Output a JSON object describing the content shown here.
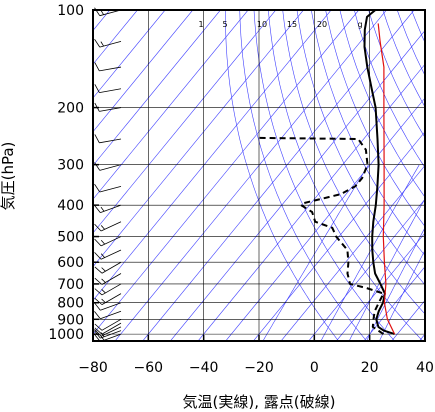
{
  "chart_data": {
    "type": "line",
    "title": "",
    "xlabel": "気温(実線), 露点(破線)",
    "ylabel": "気圧(hPa)",
    "xlim": [
      -80,
      40
    ],
    "ylim_hPa": [
      1050,
      100
    ],
    "y_scale": "log",
    "x_ticks": [
      -80,
      -60,
      -40,
      -20,
      0,
      20,
      40
    ],
    "x_tick_labels": [
      "−80",
      "−60",
      "−40",
      "−20",
      "0",
      "20",
      "40"
    ],
    "y_ticks": [
      100,
      200,
      300,
      400,
      500,
      600,
      700,
      800,
      900,
      1000
    ],
    "y_tick_labels": [
      "100",
      "200",
      "300",
      "400",
      "500",
      "600",
      "700",
      "800",
      "900",
      "1000"
    ],
    "grid": true,
    "mixing_ratio_labels": [
      {
        "text": "1",
        "w": 1
      },
      {
        "text": "5",
        "w": 5
      },
      {
        "text": "10",
        "w": 10
      },
      {
        "text": "15",
        "w": 15
      },
      {
        "text": "20",
        "w": 20
      },
      {
        "text": "g",
        "w": 27
      }
    ],
    "isotherms_C": [
      -200,
      -190,
      -180,
      -170,
      -160,
      -150,
      -140,
      -130,
      -120,
      -110,
      -100,
      -90,
      -80,
      -70,
      -60,
      -50,
      -40,
      -30,
      -20,
      -10,
      0,
      10,
      20,
      30,
      40
    ],
    "dry_adiabats_K": [
      280,
      290,
      300,
      310,
      320,
      330,
      340,
      350,
      360,
      370,
      380,
      390,
      400,
      410,
      420,
      430,
      440,
      450,
      460,
      470,
      480
    ],
    "mixing_ratio_lines_gkg": [
      1,
      5,
      10,
      15,
      20
    ],
    "series": [
      {
        "role": "temperature",
        "style": "solid",
        "color": "#000000",
        "points": [
          {
            "p": 1000,
            "t": 29
          },
          {
            "p": 975,
            "t": 24
          },
          {
            "p": 950,
            "t": 21
          },
          {
            "p": 925,
            "t": 19.5
          },
          {
            "p": 900,
            "t": 18
          },
          {
            "p": 850,
            "t": 16.5
          },
          {
            "p": 800,
            "t": 15.5
          },
          {
            "p": 750,
            "t": 13.5
          },
          {
            "p": 700,
            "t": 9
          },
          {
            "p": 650,
            "t": 4
          },
          {
            "p": 600,
            "t": 0
          },
          {
            "p": 550,
            "t": -4
          },
          {
            "p": 500,
            "t": -8
          },
          {
            "p": 450,
            "t": -12
          },
          {
            "p": 400,
            "t": -16
          },
          {
            "p": 350,
            "t": -21
          },
          {
            "p": 300,
            "t": -27
          },
          {
            "p": 250,
            "t": -35
          },
          {
            "p": 200,
            "t": -45
          },
          {
            "p": 175,
            "t": -52
          },
          {
            "p": 150,
            "t": -60
          },
          {
            "p": 130,
            "t": -67
          },
          {
            "p": 115,
            "t": -72
          },
          {
            "p": 105,
            "t": -75
          },
          {
            "p": 100,
            "t": -74
          }
        ]
      },
      {
        "role": "dewpoint",
        "style": "dashed",
        "color": "#000000",
        "points": [
          {
            "p": 1000,
            "t": 25
          },
          {
            "p": 950,
            "t": 19
          },
          {
            "p": 900,
            "t": 17
          },
          {
            "p": 850,
            "t": 15
          },
          {
            "p": 800,
            "t": 14
          },
          {
            "p": 750,
            "t": 13
          },
          {
            "p": 720,
            "t": 5
          },
          {
            "p": 700,
            "t": -2
          },
          {
            "p": 650,
            "t": -6
          },
          {
            "p": 600,
            "t": -9
          },
          {
            "p": 550,
            "t": -13
          },
          {
            "p": 500,
            "t": -21
          },
          {
            "p": 470,
            "t": -25
          },
          {
            "p": 450,
            "t": -33
          },
          {
            "p": 420,
            "t": -37
          },
          {
            "p": 400,
            "t": -43
          },
          {
            "p": 395,
            "t": -43
          },
          {
            "p": 370,
            "t": -32
          },
          {
            "p": 350,
            "t": -29
          },
          {
            "p": 330,
            "t": -29
          },
          {
            "p": 300,
            "t": -31
          },
          {
            "p": 270,
            "t": -36
          },
          {
            "p": 250,
            "t": -42
          },
          {
            "p": 248,
            "t": -78
          }
        ]
      },
      {
        "role": "parcel",
        "style": "solid",
        "color": "#e01010",
        "points": [
          {
            "p": 1000,
            "t": 29
          },
          {
            "p": 900,
            "t": 22
          },
          {
            "p": 800,
            "t": 16
          },
          {
            "p": 700,
            "t": 11
          },
          {
            "p": 600,
            "t": 4
          },
          {
            "p": 500,
            "t": -4
          },
          {
            "p": 400,
            "t": -13
          },
          {
            "p": 300,
            "t": -25
          },
          {
            "p": 200,
            "t": -42
          },
          {
            "p": 150,
            "t": -54
          },
          {
            "p": 125,
            "t": -63
          },
          {
            "p": 110,
            "t": -69
          }
        ]
      }
    ],
    "wind_barbs": [
      {
        "p": 1000,
        "dir": 250,
        "kt": 15
      },
      {
        "p": 975,
        "dir": 250,
        "kt": 15
      },
      {
        "p": 950,
        "dir": 245,
        "kt": 10
      },
      {
        "p": 925,
        "dir": 240,
        "kt": 10
      },
      {
        "p": 900,
        "dir": 240,
        "kt": 10
      },
      {
        "p": 850,
        "dir": 250,
        "kt": 10
      },
      {
        "p": 800,
        "dir": 250,
        "kt": 10
      },
      {
        "p": 750,
        "dir": 240,
        "kt": 15
      },
      {
        "p": 700,
        "dir": 240,
        "kt": 15
      },
      {
        "p": 650,
        "dir": 240,
        "kt": 15
      },
      {
        "p": 600,
        "dir": 240,
        "kt": 15
      },
      {
        "p": 550,
        "dir": 245,
        "kt": 15
      },
      {
        "p": 500,
        "dir": 245,
        "kt": 15
      },
      {
        "p": 450,
        "dir": 245,
        "kt": 15
      },
      {
        "p": 400,
        "dir": 250,
        "kt": 15
      },
      {
        "p": 350,
        "dir": 255,
        "kt": 10
      },
      {
        "p": 300,
        "dir": 255,
        "kt": 10
      },
      {
        "p": 250,
        "dir": 260,
        "kt": 10
      },
      {
        "p": 200,
        "dir": 260,
        "kt": 10
      },
      {
        "p": 175,
        "dir": 260,
        "kt": 10
      },
      {
        "p": 150,
        "dir": 260,
        "kt": 10
      },
      {
        "p": 125,
        "dir": 255,
        "kt": 15
      },
      {
        "p": 100,
        "dir": 255,
        "kt": 15
      }
    ],
    "colors": {
      "isotherm": "#4040ff",
      "adiabat": "#4040ff",
      "mixing_ratio": "#4040ff",
      "grid": "#000000",
      "temperature": "#000000",
      "dewpoint": "#000000",
      "parcel": "#e01010"
    }
  }
}
